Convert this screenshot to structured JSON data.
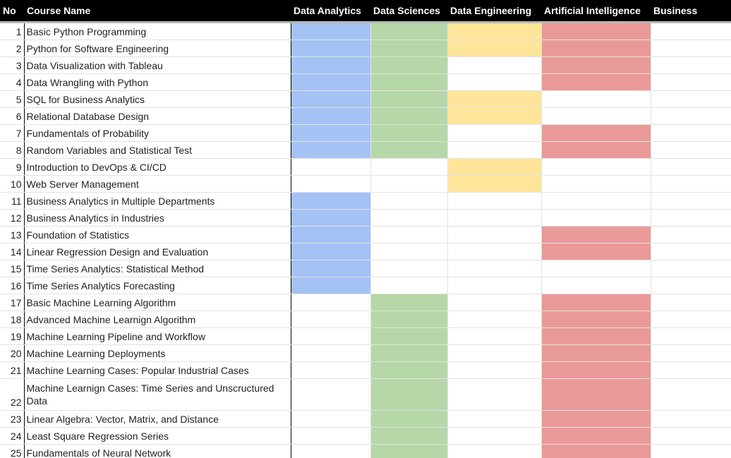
{
  "headers": {
    "no": "No",
    "course_name": "Course Name",
    "data_analytics": "Data Analytics",
    "data_sciences": "Data Sciences",
    "data_engineering": "Data Engineering",
    "artificial_intelligence": "Artificial Intelligence",
    "business": "Business"
  },
  "colors": {
    "header_bg": "#000000",
    "data_analytics": "#a4c2f4",
    "data_sciences": "#b6d7a8",
    "data_engineering": "#ffe599",
    "artificial_intelligence": "#ea9999"
  },
  "rows": [
    {
      "no": "1",
      "name": "Basic Python Programming",
      "da": true,
      "ds": true,
      "de": true,
      "ai": true,
      "bz": false
    },
    {
      "no": "2",
      "name": "Python for Software Engineering",
      "da": true,
      "ds": true,
      "de": true,
      "ai": true,
      "bz": false
    },
    {
      "no": "3",
      "name": "Data Visualization with Tableau",
      "da": true,
      "ds": true,
      "de": false,
      "ai": true,
      "bz": false
    },
    {
      "no": "4",
      "name": "Data Wrangling with Python",
      "da": true,
      "ds": true,
      "de": false,
      "ai": true,
      "bz": false
    },
    {
      "no": "5",
      "name": "SQL for Business Analytics",
      "da": true,
      "ds": true,
      "de": true,
      "ai": false,
      "bz": false
    },
    {
      "no": "6",
      "name": "Relational Database Design",
      "da": true,
      "ds": true,
      "de": true,
      "ai": false,
      "bz": false
    },
    {
      "no": "7",
      "name": "Fundamentals of Probability",
      "da": true,
      "ds": true,
      "de": false,
      "ai": true,
      "bz": false
    },
    {
      "no": "8",
      "name": "Random Variables and Statistical Test",
      "da": true,
      "ds": true,
      "de": false,
      "ai": true,
      "bz": false
    },
    {
      "no": "9",
      "name": "Introduction to DevOps & CI/CD",
      "da": false,
      "ds": false,
      "de": true,
      "ai": false,
      "bz": false
    },
    {
      "no": "10",
      "name": "Web Server Management",
      "da": false,
      "ds": false,
      "de": true,
      "ai": false,
      "bz": false
    },
    {
      "no": "11",
      "name": "Business Analytics in Multiple Departments",
      "da": true,
      "ds": false,
      "de": false,
      "ai": false,
      "bz": false
    },
    {
      "no": "12",
      "name": "Business Analytics in Industries",
      "da": true,
      "ds": false,
      "de": false,
      "ai": false,
      "bz": false
    },
    {
      "no": "13",
      "name": "Foundation of Statistics",
      "da": true,
      "ds": false,
      "de": false,
      "ai": true,
      "bz": false
    },
    {
      "no": "14",
      "name": "Linear Regression Design and Evaluation",
      "da": true,
      "ds": false,
      "de": false,
      "ai": true,
      "bz": false
    },
    {
      "no": "15",
      "name": "Time Series Analytics: Statistical Method",
      "da": true,
      "ds": false,
      "de": false,
      "ai": false,
      "bz": false
    },
    {
      "no": "16",
      "name": "Time Series Analytics Forecasting",
      "da": true,
      "ds": false,
      "de": false,
      "ai": false,
      "bz": false
    },
    {
      "no": "17",
      "name": "Basic Machine Learning Algorithm",
      "da": false,
      "ds": true,
      "de": false,
      "ai": true,
      "bz": false
    },
    {
      "no": "18",
      "name": "Advanced Machine Learnign Algorithm",
      "da": false,
      "ds": true,
      "de": false,
      "ai": true,
      "bz": false
    },
    {
      "no": "19",
      "name": "Machine Learning Pipeline and Workflow",
      "da": false,
      "ds": true,
      "de": false,
      "ai": true,
      "bz": false
    },
    {
      "no": "20",
      "name": "Machine Learning Deployments",
      "da": false,
      "ds": true,
      "de": false,
      "ai": true,
      "bz": false
    },
    {
      "no": "21",
      "name": "Machine Learning Cases: Popular Industrial Cases",
      "da": false,
      "ds": true,
      "de": false,
      "ai": true,
      "bz": false
    },
    {
      "no": "22",
      "name": "Machine Learnign Cases: Time Series and Unscructured Data",
      "da": false,
      "ds": true,
      "de": false,
      "ai": true,
      "bz": false,
      "tall": true
    },
    {
      "no": "23",
      "name": "Linear Algebra: Vector, Matrix, and Distance",
      "da": false,
      "ds": true,
      "de": false,
      "ai": true,
      "bz": false
    },
    {
      "no": "24",
      "name": "Least Square Regression Series",
      "da": false,
      "ds": true,
      "de": false,
      "ai": true,
      "bz": false
    },
    {
      "no": "25",
      "name": "Fundamentals of Neural Network",
      "da": false,
      "ds": true,
      "de": false,
      "ai": true,
      "bz": false
    }
  ]
}
